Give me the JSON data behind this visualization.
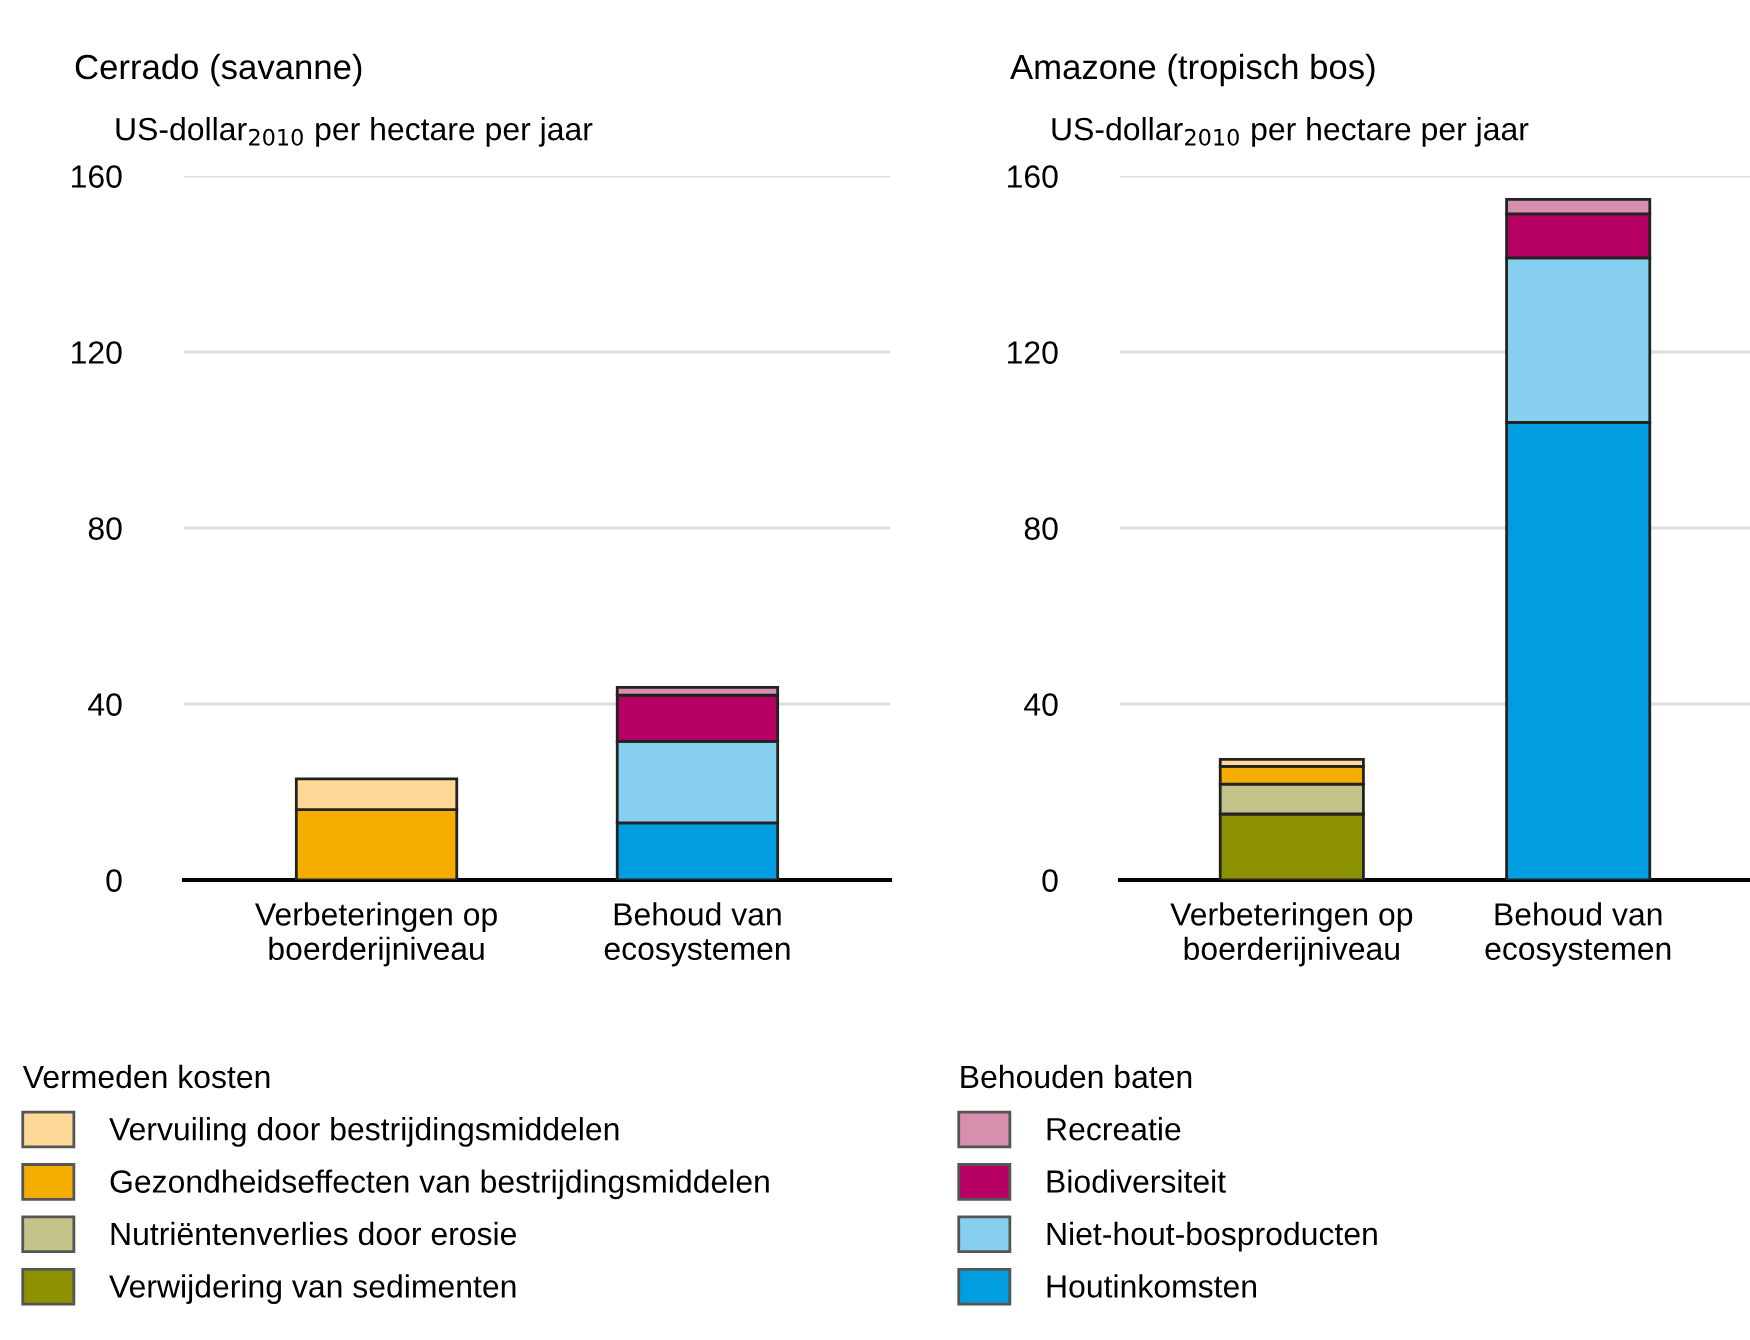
{
  "chart_data": [
    {
      "type": "bar",
      "title": "Cerrado (savanne)",
      "ylabel": "US-dollar$_{2010}$ per hectare per jaar",
      "stacked": true,
      "categories": [
        "Verbeteringen op\nboerderijniveau",
        "Behoud van\necosystemen"
      ],
      "ylim": [
        0,
        160
      ],
      "yticks": [
        0,
        40,
        80,
        120,
        160
      ],
      "grid": "y",
      "legend": "bottom",
      "legend_title": "Vermeden kosten",
      "series": [
        {
          "name": "Verwijdering van sedimenten",
          "color": "#8c9100",
          "values": [
            null,
            null
          ]
        },
        {
          "name": "Nutriëntenverlies door erosie",
          "color": "#c4c48a",
          "values": [
            null,
            null
          ]
        },
        {
          "name": "Gezondheidseffecten van bestrijdingsmiddelen",
          "color": "#f5ae00",
          "values": [
            16,
            null
          ]
        },
        {
          "name": "Vervuiling door bestrijdingsmiddelen",
          "color": "#fdd897",
          "values": [
            7,
            null
          ]
        },
        {
          "color": "#009ee0",
          "values": [
            null,
            13
          ]
        },
        {
          "color": "#87cfef",
          "values": [
            null,
            18.5
          ]
        },
        {
          "color": "#b70063",
          "values": [
            null,
            10.5
          ]
        },
        {
          "color": "#d78fae",
          "values": [
            null,
            1.8
          ]
        }
      ]
    },
    {
      "type": "bar",
      "title": "Amazone (tropisch bos)",
      "ylabel": "US-dollar$_{2010}$ per hectare per jaar",
      "stacked": true,
      "categories": [
        "Verbeteringen op\nboerderijniveau",
        "Behoud van\necosystemen"
      ],
      "ylim": [
        0,
        160
      ],
      "yticks": [
        0,
        40,
        80,
        120,
        160
      ],
      "grid": "y",
      "legend": "bottom",
      "legend_title": "Behouden baten",
      "series": [
        {
          "color": "#8c9100",
          "values": [
            15,
            null
          ]
        },
        {
          "color": "#c4c48a",
          "values": [
            6.8,
            null
          ]
        },
        {
          "color": "#f5ae00",
          "values": [
            4,
            null
          ]
        },
        {
          "color": "#fdd897",
          "values": [
            1.6,
            null
          ]
        },
        {
          "name": "Houtinkomsten",
          "color": "#009ee0",
          "values": [
            null,
            104
          ]
        },
        {
          "name": "Niet-hout-bosproducten",
          "color": "#87cfef",
          "values": [
            null,
            37.4
          ]
        },
        {
          "name": "Biodiversiteit",
          "color": "#b70063",
          "values": [
            null,
            10
          ]
        },
        {
          "name": "Recreatie",
          "color": "#d78fae",
          "values": [
            null,
            3.3
          ]
        }
      ]
    }
  ]
}
